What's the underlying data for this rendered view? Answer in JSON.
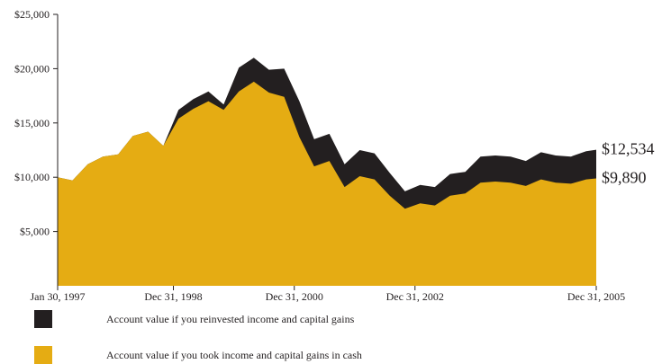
{
  "chart_data": {
    "type": "area",
    "title": "",
    "xlabel": "",
    "ylabel": "",
    "ylim": [
      0,
      25000
    ],
    "y_ticks": [
      {
        "value": 25000,
        "label": "$25,000"
      },
      {
        "value": 20000,
        "label": "$20,000"
      },
      {
        "value": 15000,
        "label": "$15,000"
      },
      {
        "value": 10000,
        "label": "$10,000"
      },
      {
        "value": 5000,
        "label": "$5,000"
      }
    ],
    "x_ticks": [
      "Jan 30, 1997",
      "Dec 31, 1998",
      "Dec 31, 2000",
      "Dec 31, 2002",
      "Dec 31, 2005"
    ],
    "x_tick_dates": [
      "1997-01-30",
      "1998-12-31",
      "2000-12-31",
      "2002-12-31",
      "2005-12-31"
    ],
    "grid": false,
    "legend_position": "bottom-left",
    "series": [
      {
        "name": "Account value if you reinvested income and capital gains",
        "color": "#231f20",
        "end_label": "$12,534",
        "x": [
          "1997-01-30",
          "1997-04-30",
          "1997-07-31",
          "1997-10-31",
          "1998-01-31",
          "1998-04-30",
          "1998-07-31",
          "1998-10-31",
          "1999-01-31",
          "1999-04-30",
          "1999-07-31",
          "1999-10-31",
          "2000-01-31",
          "2000-04-30",
          "2000-07-31",
          "2000-10-31",
          "2001-01-31",
          "2001-04-30",
          "2001-07-31",
          "2001-10-31",
          "2002-01-31",
          "2002-04-30",
          "2002-07-31",
          "2002-10-31",
          "2003-01-31",
          "2003-04-30",
          "2003-07-31",
          "2003-10-31",
          "2004-01-31",
          "2004-04-30",
          "2004-07-31",
          "2004-10-31",
          "2005-01-31",
          "2005-04-30",
          "2005-07-31",
          "2005-10-31",
          "2005-12-31"
        ],
        "values": [
          10000,
          9700,
          11200,
          11900,
          12100,
          13800,
          14200,
          12900,
          16200,
          17200,
          17900,
          16700,
          20100,
          21000,
          19900,
          20000,
          17000,
          13500,
          14000,
          11200,
          12500,
          12200,
          10400,
          8700,
          9300,
          9100,
          10300,
          10500,
          11900,
          12000,
          11900,
          11500,
          12300,
          12000,
          11900,
          12400,
          12534
        ]
      },
      {
        "name": "Account value if you took income and capital gains in cash",
        "color": "#e5ac13",
        "end_label": "$9,890",
        "x": [
          "1997-01-30",
          "1997-04-30",
          "1997-07-31",
          "1997-10-31",
          "1998-01-31",
          "1998-04-30",
          "1998-07-31",
          "1998-10-31",
          "1999-01-31",
          "1999-04-30",
          "1999-07-31",
          "1999-10-31",
          "2000-01-31",
          "2000-04-30",
          "2000-07-31",
          "2000-10-31",
          "2001-01-31",
          "2001-04-30",
          "2001-07-31",
          "2001-10-31",
          "2002-01-31",
          "2002-04-30",
          "2002-07-31",
          "2002-10-31",
          "2003-01-31",
          "2003-04-30",
          "2003-07-31",
          "2003-10-31",
          "2004-01-31",
          "2004-04-30",
          "2004-07-31",
          "2004-10-31",
          "2005-01-31",
          "2005-04-30",
          "2005-07-31",
          "2005-10-31",
          "2005-12-31"
        ],
        "values": [
          10000,
          9700,
          11200,
          11900,
          12100,
          13800,
          14200,
          12900,
          15400,
          16300,
          17000,
          16200,
          17900,
          18800,
          17800,
          17400,
          13700,
          11000,
          11500,
          9100,
          10100,
          9800,
          8300,
          7100,
          7600,
          7400,
          8300,
          8500,
          9500,
          9600,
          9500,
          9200,
          9800,
          9500,
          9400,
          9800,
          9890
        ]
      }
    ]
  }
}
